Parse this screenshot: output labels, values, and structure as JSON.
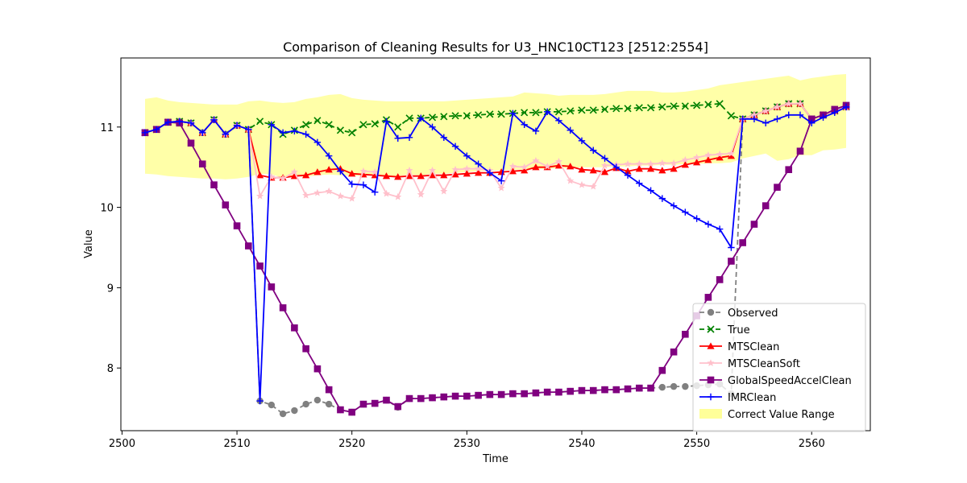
{
  "chart_data": {
    "type": "line",
    "title": "Comparison of Cleaning Results for U3_HNC10CT123 [2512:2554]",
    "xlabel": "Time",
    "ylabel": "Value",
    "xlim": [
      2499.9,
      2565.1
    ],
    "ylim": [
      7.22,
      11.86
    ],
    "xticks": [
      2500,
      2510,
      2520,
      2530,
      2540,
      2550,
      2560
    ],
    "yticks": [
      8,
      9,
      10,
      11
    ],
    "grid": false,
    "legend_position": "lower-right",
    "x": [
      2502,
      2503,
      2504,
      2505,
      2506,
      2507,
      2508,
      2509,
      2510,
      2511,
      2512,
      2513,
      2514,
      2515,
      2516,
      2517,
      2518,
      2519,
      2520,
      2521,
      2522,
      2523,
      2524,
      2525,
      2526,
      2527,
      2528,
      2529,
      2530,
      2531,
      2532,
      2533,
      2534,
      2535,
      2536,
      2537,
      2538,
      2539,
      2540,
      2541,
      2542,
      2543,
      2544,
      2545,
      2546,
      2547,
      2548,
      2549,
      2550,
      2551,
      2552,
      2553,
      2554,
      2555,
      2556,
      2557,
      2558,
      2559,
      2560,
      2561,
      2562,
      2563
    ],
    "band": {
      "name": "Correct Value Range",
      "color": "#ffff99",
      "lower": [
        10.42,
        10.41,
        10.39,
        10.38,
        10.37,
        10.36,
        10.36,
        10.35,
        10.36,
        10.38,
        10.42,
        10.41,
        10.37,
        10.39,
        10.38,
        10.4,
        10.41,
        10.4,
        10.39,
        10.4,
        10.4,
        10.39,
        10.39,
        10.41,
        10.4,
        10.42,
        10.42,
        10.43,
        10.44,
        10.45,
        10.46,
        10.46,
        10.47,
        10.47,
        10.48,
        10.48,
        10.49,
        10.49,
        10.5,
        10.5,
        10.5,
        10.51,
        10.51,
        10.52,
        10.52,
        10.53,
        10.53,
        10.54,
        10.54,
        10.55,
        10.55,
        10.56,
        10.61,
        10.64,
        10.67,
        10.58,
        10.6,
        10.65,
        10.65,
        10.71,
        10.72,
        10.74
      ],
      "upper": [
        11.35,
        11.37,
        11.33,
        11.31,
        11.3,
        11.29,
        11.28,
        11.28,
        11.28,
        11.32,
        11.33,
        11.31,
        11.3,
        11.31,
        11.35,
        11.37,
        11.4,
        11.41,
        11.36,
        11.34,
        11.33,
        11.32,
        11.32,
        11.32,
        11.32,
        11.32,
        11.32,
        11.33,
        11.34,
        11.35,
        11.36,
        11.37,
        11.38,
        11.43,
        11.42,
        11.41,
        11.39,
        11.4,
        11.4,
        11.4,
        11.41,
        11.43,
        11.45,
        11.45,
        11.45,
        11.43,
        11.43,
        11.44,
        11.46,
        11.48,
        11.52,
        11.54,
        11.56,
        11.58,
        11.6,
        11.62,
        11.64,
        11.58,
        11.61,
        11.63,
        11.65,
        11.66
      ]
    },
    "series": [
      {
        "name": "Observed",
        "color": "#808080",
        "dash": "6,4",
        "marker": "circle",
        "values": [
          10.93,
          10.97,
          11.06,
          11.07,
          11.05,
          10.93,
          11.09,
          10.91,
          11.02,
          10.97,
          7.59,
          7.54,
          7.43,
          7.47,
          7.55,
          7.6,
          7.55,
          7.48,
          7.45,
          7.55,
          7.56,
          7.6,
          7.51,
          7.62,
          7.62,
          7.63,
          7.64,
          7.65,
          7.65,
          7.66,
          7.67,
          7.67,
          7.68,
          7.68,
          7.69,
          7.7,
          7.7,
          7.71,
          7.72,
          7.72,
          7.73,
          7.73,
          7.74,
          7.75,
          7.75,
          7.76,
          7.77,
          7.77,
          7.78,
          7.79,
          7.8,
          7.68,
          11.1,
          11.15,
          11.2,
          11.25,
          11.29,
          11.29,
          11.1,
          11.15,
          11.2,
          11.25
        ]
      },
      {
        "name": "True",
        "color": "#008000",
        "dash": "6,4",
        "marker": "x",
        "values": [
          10.93,
          10.97,
          11.06,
          11.07,
          11.05,
          10.93,
          11.09,
          10.91,
          11.02,
          10.97,
          11.07,
          11.03,
          10.91,
          10.96,
          11.03,
          11.08,
          11.03,
          10.96,
          10.93,
          11.03,
          11.04,
          11.09,
          11.0,
          11.11,
          11.11,
          11.12,
          11.13,
          11.14,
          11.14,
          11.15,
          11.16,
          11.16,
          11.17,
          11.18,
          11.18,
          11.19,
          11.19,
          11.2,
          11.21,
          11.21,
          11.22,
          11.23,
          11.23,
          11.24,
          11.24,
          11.25,
          11.26,
          11.26,
          11.27,
          11.28,
          11.29,
          11.14,
          11.1,
          11.15,
          11.2,
          11.25,
          11.29,
          11.29,
          11.1,
          11.15,
          11.2,
          11.25
        ]
      },
      {
        "name": "MTSClean",
        "color": "#ff0000",
        "dash": "",
        "marker": "triangle",
        "values": [
          10.93,
          10.97,
          11.06,
          11.07,
          11.05,
          10.93,
          11.09,
          10.91,
          11.02,
          10.97,
          10.4,
          10.37,
          10.37,
          10.39,
          10.4,
          10.44,
          10.47,
          10.48,
          10.42,
          10.41,
          10.4,
          10.39,
          10.38,
          10.39,
          10.39,
          10.4,
          10.4,
          10.41,
          10.42,
          10.43,
          10.43,
          10.44,
          10.45,
          10.46,
          10.5,
          10.5,
          10.52,
          10.51,
          10.47,
          10.46,
          10.44,
          10.49,
          10.45,
          10.48,
          10.48,
          10.46,
          10.48,
          10.53,
          10.56,
          10.59,
          10.62,
          10.64,
          11.1,
          11.15,
          11.2,
          11.25,
          11.29,
          11.29,
          11.1,
          11.15,
          11.2,
          11.25
        ]
      },
      {
        "name": "MTSCleanSoft",
        "color": "#ffc0cb",
        "dash": "",
        "marker": "star",
        "values": [
          10.93,
          10.97,
          11.06,
          11.07,
          11.05,
          10.93,
          11.09,
          10.91,
          11.02,
          10.97,
          10.14,
          10.38,
          10.36,
          10.44,
          10.15,
          10.18,
          10.2,
          10.14,
          10.11,
          10.45,
          10.44,
          10.17,
          10.13,
          10.46,
          10.16,
          10.46,
          10.2,
          10.47,
          10.48,
          10.48,
          10.46,
          10.24,
          10.51,
          10.5,
          10.58,
          10.51,
          10.57,
          10.33,
          10.28,
          10.26,
          10.52,
          10.53,
          10.54,
          10.54,
          10.54,
          10.55,
          10.55,
          10.59,
          10.62,
          10.65,
          10.66,
          10.67,
          11.1,
          11.15,
          11.2,
          11.25,
          11.29,
          11.29,
          11.1,
          11.15,
          11.2,
          11.25
        ]
      },
      {
        "name": "GlobalSpeedAccelClean",
        "color": "#800080",
        "dash": "",
        "marker": "square",
        "values": [
          10.93,
          10.97,
          11.06,
          11.05,
          10.8,
          10.54,
          10.28,
          10.03,
          9.77,
          9.52,
          9.27,
          9.01,
          8.75,
          8.5,
          8.24,
          7.99,
          7.73,
          7.48,
          7.45,
          7.55,
          7.56,
          7.6,
          7.52,
          7.62,
          7.62,
          7.63,
          7.64,
          7.65,
          7.65,
          7.66,
          7.67,
          7.67,
          7.68,
          7.68,
          7.69,
          7.7,
          7.7,
          7.71,
          7.72,
          7.72,
          7.73,
          7.73,
          7.74,
          7.75,
          7.75,
          7.97,
          8.2,
          8.42,
          8.65,
          8.88,
          9.1,
          9.33,
          9.56,
          9.79,
          10.02,
          10.25,
          10.47,
          10.7,
          11.1,
          11.15,
          11.22,
          11.27
        ]
      },
      {
        "name": "IMRClean",
        "color": "#0000ff",
        "dash": "",
        "marker": "plus",
        "values": [
          10.93,
          10.97,
          11.06,
          11.07,
          11.05,
          10.93,
          11.09,
          10.91,
          11.02,
          10.97,
          7.59,
          11.03,
          10.93,
          10.95,
          10.91,
          10.81,
          10.64,
          10.45,
          10.29,
          10.28,
          10.19,
          11.07,
          10.86,
          10.87,
          11.11,
          11.0,
          10.87,
          10.76,
          10.64,
          10.54,
          10.43,
          10.33,
          11.17,
          11.03,
          10.95,
          11.19,
          11.08,
          10.96,
          10.83,
          10.71,
          10.61,
          10.5,
          10.4,
          10.3,
          10.21,
          10.11,
          10.02,
          9.94,
          9.86,
          9.79,
          9.73,
          9.5,
          11.1,
          11.1,
          11.05,
          11.1,
          11.15,
          11.15,
          11.05,
          11.12,
          11.18,
          11.25
        ]
      }
    ]
  }
}
